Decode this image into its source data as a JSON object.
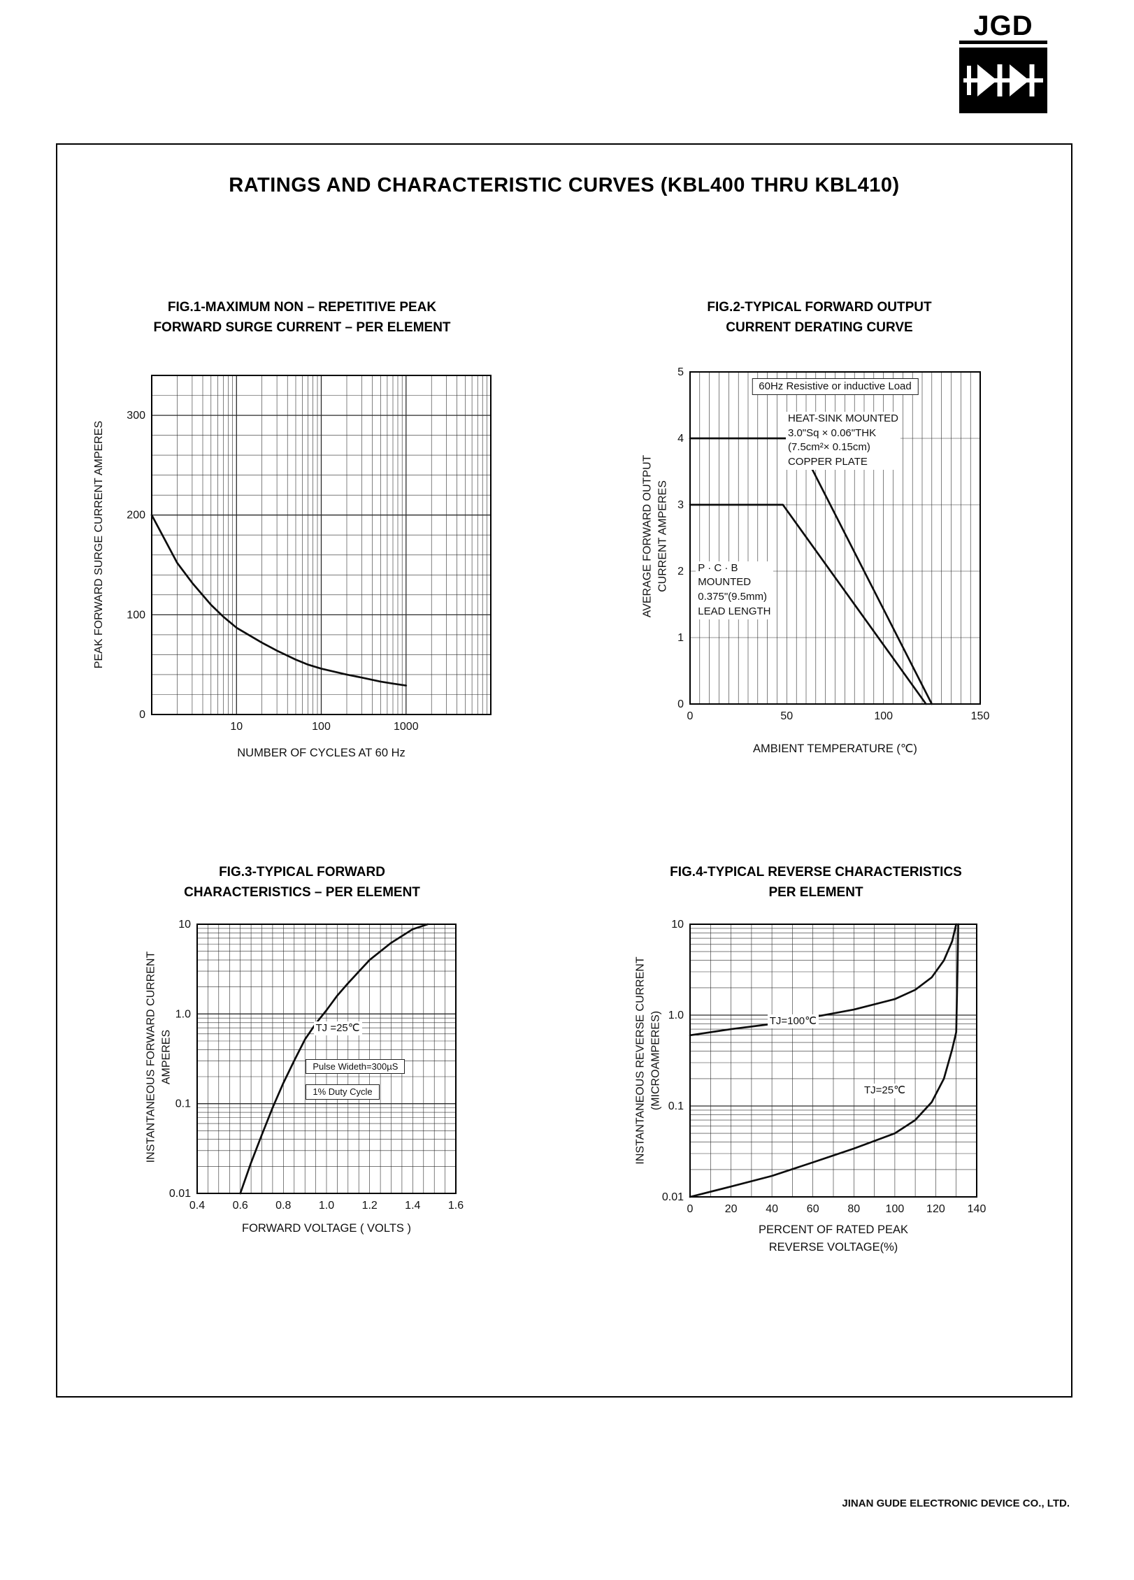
{
  "page": {
    "logo_text": "JGD",
    "title": "RATINGS AND CHARACTERISTIC CURVES (KBL400 THRU KBL410)",
    "footer": "JINAN GUDE ELECTRONIC DEVICE CO., LTD."
  },
  "chart_data": [
    {
      "id": "fig1",
      "type": "line",
      "title_lines": [
        "FIG.1-MAXIMUM NON – REPETITIVE PEAK",
        "FORWARD SURGE CURRENT – PER ELEMENT"
      ],
      "ylabel_lines": [
        "PEAK FORWARD SURGE CURRENT AMPERES"
      ],
      "xlabel_lines": [
        "NUMBER OF CYCLES AT 60 Hz"
      ],
      "x_scale": "log",
      "xlim": [
        1,
        10000
      ],
      "x_ticks": [
        10,
        100,
        1000
      ],
      "x_tick_labels": [
        "10",
        "100",
        "1000"
      ],
      "y_scale": "linear",
      "ylim": [
        0,
        340
      ],
      "y_ticks": [
        0,
        100,
        200,
        300
      ],
      "y_tick_labels": [
        "0",
        "100",
        "200",
        "300"
      ],
      "grid": {
        "x_step": 0,
        "y_step": 20,
        "x_uniform": false,
        "y_uniform": false
      },
      "series": [
        {
          "name": "peak-surge-current",
          "x": [
            1,
            2,
            3,
            5,
            7,
            10,
            20,
            30,
            50,
            70,
            100,
            200,
            300,
            500,
            700,
            1000
          ],
          "y": [
            200,
            152,
            132,
            110,
            98,
            87,
            72,
            64,
            55,
            50,
            46,
            40,
            37,
            33,
            31,
            29
          ]
        }
      ],
      "annotations": []
    },
    {
      "id": "fig2",
      "type": "line",
      "title_lines": [
        "FIG.2-TYPICAL FORWARD OUTPUT",
        "CURRENT DERATING CURVE"
      ],
      "ylabel_lines": [
        "AVERAGE FORWARD OUTPUT",
        "CURRENT AMPERES"
      ],
      "xlabel_lines": [
        "AMBIENT TEMPERATURE (℃)"
      ],
      "x_scale": "linear",
      "xlim": [
        0,
        150
      ],
      "x_ticks": [
        0,
        50,
        100,
        150
      ],
      "x_tick_labels": [
        "0",
        "50",
        "100",
        "150"
      ],
      "y_scale": "linear",
      "ylim": [
        0,
        5
      ],
      "y_ticks": [
        0,
        1,
        2,
        3,
        4,
        5
      ],
      "y_tick_labels": [
        "0",
        "1",
        "2",
        "3",
        "4",
        "5"
      ],
      "grid": {
        "x_step": 5,
        "y_step": 1,
        "x_uniform": true,
        "y_uniform": true
      },
      "series": [
        {
          "name": "heat-sink-mounted",
          "x": [
            0,
            55,
            125
          ],
          "y": [
            4,
            4,
            0
          ]
        },
        {
          "name": "pcb-mounted",
          "x": [
            0,
            48,
            122
          ],
          "y": [
            3,
            3,
            0
          ]
        }
      ],
      "annotations": [
        {
          "lines": [
            "60Hz Resistive or inductive Load"
          ],
          "fx": 0.5,
          "fy": 0.018,
          "center": true,
          "box": true
        },
        {
          "lines": [
            "HEAT-SINK MOUNTED",
            "3.0\"Sq × 0.06\"THK",
            "(7.5cm²× 0.15cm)",
            "COPPER PLATE"
          ],
          "fx": 0.33,
          "fy": 0.12
        },
        {
          "lines": [
            "P · C · B",
            "MOUNTED",
            "0.375\"(9.5mm)",
            "LEAD LENGTH"
          ],
          "fx": 0.02,
          "fy": 0.57
        }
      ]
    },
    {
      "id": "fig3",
      "type": "line",
      "title_lines": [
        "FIG.3-TYPICAL FORWARD",
        "CHARACTERISTICS – PER ELEMENT"
      ],
      "ylabel_lines": [
        "INSTANTANEOUS FORWARD CURRENT",
        "AMPERES"
      ],
      "xlabel_lines": [
        "FORWARD VOLTAGE ( VOLTS )"
      ],
      "x_scale": "linear",
      "xlim": [
        0.4,
        1.6
      ],
      "x_ticks": [
        0.4,
        0.6,
        0.8,
        1.0,
        1.2,
        1.4,
        1.6
      ],
      "x_tick_labels": [
        "0.4",
        "0.6",
        "0.8",
        "1.0",
        "1.2",
        "1.4",
        "1.6"
      ],
      "y_scale": "log",
      "ylim": [
        0.01,
        10
      ],
      "y_ticks": [
        0.01,
        0.1,
        1,
        10
      ],
      "y_tick_labels": [
        "0.01",
        "0.1",
        "1.0",
        "10"
      ],
      "grid": {
        "x_step": 0.05,
        "y_step": 0,
        "x_uniform": true,
        "y_uniform": false
      },
      "series": [
        {
          "name": "forward-characteristic",
          "x": [
            0.6,
            0.65,
            0.7,
            0.75,
            0.8,
            0.85,
            0.9,
            0.95,
            1.0,
            1.05,
            1.1,
            1.2,
            1.3,
            1.4,
            1.47
          ],
          "y": [
            0.01,
            0.022,
            0.045,
            0.09,
            0.17,
            0.3,
            0.52,
            0.78,
            1.1,
            1.6,
            2.2,
            4.0,
            6.2,
            8.8,
            10
          ]
        }
      ],
      "annotations": [
        {
          "lines": [
            "TJ =25℃"
          ],
          "fx": 0.45,
          "fy": 0.36
        },
        {
          "lines": [
            "Pulse Wideth=300µS"
          ],
          "fx": 0.42,
          "fy": 0.5,
          "box": true,
          "small": true
        },
        {
          "lines": [
            "1% Duty Cycle"
          ],
          "fx": 0.42,
          "fy": 0.595,
          "box": true,
          "small": true
        }
      ]
    },
    {
      "id": "fig4",
      "type": "line",
      "title_lines": [
        "FIG.4-TYPICAL REVERSE CHARACTERISTICS",
        "PER ELEMENT"
      ],
      "ylabel_lines": [
        "INSTANTANEOUS REVERSE CURRENT",
        "(MICROAMPERES)"
      ],
      "xlabel_lines": [
        "PERCENT OF RATED PEAK",
        "REVERSE VOLTAGE(%)"
      ],
      "x_scale": "linear",
      "xlim": [
        0,
        140
      ],
      "x_ticks": [
        0,
        20,
        40,
        60,
        80,
        100,
        120,
        140
      ],
      "x_tick_labels": [
        "0",
        "20",
        "40",
        "60",
        "80",
        "100",
        "120",
        "140"
      ],
      "y_scale": "log",
      "ylim": [
        0.01,
        10
      ],
      "y_ticks": [
        0.01,
        0.1,
        1,
        10
      ],
      "y_tick_labels": [
        "0.01",
        "0.1",
        "1.0",
        "10"
      ],
      "grid": {
        "x_step": 10,
        "y_step": 0,
        "x_uniform": true,
        "y_uniform": false
      },
      "series": [
        {
          "name": "tj-100c",
          "x": [
            0,
            20,
            40,
            60,
            80,
            100,
            110,
            118,
            124,
            128,
            130
          ],
          "y": [
            0.6,
            0.7,
            0.8,
            0.95,
            1.15,
            1.5,
            1.9,
            2.6,
            4.0,
            6.5,
            10
          ]
        },
        {
          "name": "tj-25c",
          "x": [
            0,
            20,
            40,
            60,
            80,
            100,
            110,
            118,
            124,
            128,
            130,
            130.6,
            131
          ],
          "y": [
            0.01,
            0.013,
            0.017,
            0.024,
            0.034,
            0.05,
            0.07,
            0.11,
            0.2,
            0.42,
            0.65,
            3,
            10
          ]
        }
      ],
      "annotations": [
        {
          "lines": [
            "TJ=100℃"
          ],
          "fx": 0.27,
          "fy": 0.33
        },
        {
          "lines": [
            "TJ=25℃"
          ],
          "fx": 0.6,
          "fy": 0.585
        }
      ]
    }
  ]
}
